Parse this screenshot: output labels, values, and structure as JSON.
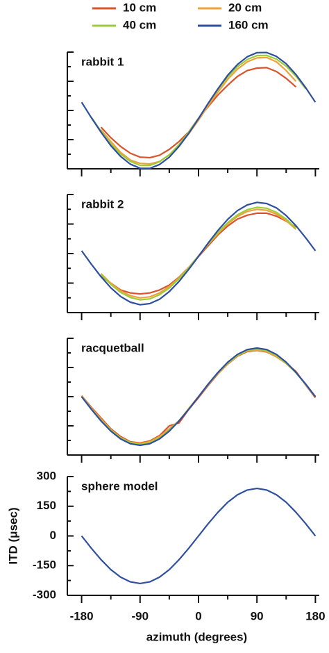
{
  "chart_data": [
    {
      "type": "line",
      "title": "rabbit 1",
      "x": [
        -180,
        -165,
        -150,
        -135,
        -120,
        -105,
        -90,
        -75,
        -60,
        -45,
        -30,
        -15,
        0,
        15,
        30,
        45,
        60,
        75,
        90,
        105,
        120,
        135,
        150,
        165,
        180
      ],
      "xlim": [
        -202,
        186
      ],
      "xticks": [
        -180,
        -90,
        0,
        90,
        180
      ],
      "xminor": [
        -135,
        -45,
        45,
        135
      ],
      "xtick_labels": false,
      "ylim": [
        -300,
        300
      ],
      "yticks": [
        -300,
        -150,
        0,
        150,
        300
      ],
      "yminor": [
        -225,
        -75,
        75,
        225
      ],
      "ytick_labels": false,
      "series": [
        {
          "name": "10 cm",
          "color": "#d9532b",
          "values": [
            null,
            null,
            -86,
            -140,
            -185,
            -220,
            -240,
            -243,
            -230,
            -200,
            -160,
            -110,
            -40,
            20,
            80,
            130,
            175,
            205,
            218,
            220,
            200,
            165,
            121,
            null,
            null
          ]
        },
        {
          "name": "20 cm",
          "color": "#f0a13a",
          "values": [
            null,
            null,
            -100,
            -160,
            -215,
            -255,
            -272,
            -275,
            -262,
            -228,
            -180,
            -120,
            -50,
            25,
            95,
            160,
            212,
            250,
            270,
            272,
            250,
            205,
            150,
            null,
            null
          ]
        },
        {
          "name": "40 cm",
          "color": "#9ccc3c",
          "values": [
            null,
            -35,
            -107,
            -172,
            -224,
            -262,
            -282,
            -283,
            -264,
            -228,
            -176,
            -111,
            -40,
            35,
            107,
            172,
            225,
            262,
            282,
            283,
            264,
            228,
            176,
            111,
            null
          ]
        },
        {
          "name": "160 cm",
          "color": "#2e4fa0",
          "values": [
            42,
            -37,
            -112,
            -181,
            -236,
            -276,
            -297,
            -298,
            -278,
            -240,
            -185,
            -117,
            -42,
            37,
            112,
            181,
            236,
            276,
            297,
            298,
            278,
            240,
            185,
            117,
            42
          ]
        }
      ]
    },
    {
      "type": "line",
      "title": "rabbit 2",
      "x": [
        -180,
        -165,
        -150,
        -135,
        -120,
        -105,
        -90,
        -75,
        -60,
        -45,
        -30,
        -15,
        0,
        15,
        30,
        45,
        60,
        75,
        90,
        105,
        120,
        135,
        150,
        165,
        180
      ],
      "xlim": [
        -202,
        186
      ],
      "xticks": [
        -180,
        -90,
        0,
        90,
        180
      ],
      "xminor": [
        -135,
        -45,
        45,
        135
      ],
      "xtick_labels": false,
      "ylim": [
        -300,
        300
      ],
      "yticks": [
        -300,
        -150,
        0,
        150,
        300
      ],
      "yminor": [
        -225,
        -75,
        75,
        225
      ],
      "ytick_labels": false,
      "series": [
        {
          "name": "10 cm",
          "color": "#d9532b",
          "values": [
            null,
            null,
            -116,
            -150,
            -185,
            -200,
            -205,
            -200,
            -185,
            -160,
            -120,
            -70,
            -15,
            40,
            95,
            140,
            175,
            195,
            205,
            205,
            190,
            165,
            134,
            null,
            null
          ]
        },
        {
          "name": "20 cm",
          "color": "#f0a13a",
          "values": [
            null,
            null,
            -102,
            -151,
            -189,
            -214,
            -225,
            -220,
            -200,
            -167,
            -123,
            -70,
            -12,
            47,
            102,
            151,
            189,
            214,
            225,
            220,
            200,
            167,
            123,
            null,
            null
          ]
        },
        {
          "name": "40 cm",
          "color": "#9ccc3c",
          "values": [
            null,
            null,
            -107,
            -157,
            -197,
            -223,
            -235,
            -230,
            -209,
            -175,
            -128,
            -73,
            -12,
            49,
            107,
            157,
            197,
            223,
            235,
            230,
            209,
            175,
            128,
            null,
            null
          ]
        },
        {
          "name": "160 cm",
          "color": "#2e4fa0",
          "values": [
            14,
            -54,
            -118,
            -174,
            -218,
            -247,
            -260,
            -254,
            -232,
            -193,
            -142,
            -80,
            -14,
            54,
            118,
            174,
            218,
            247,
            260,
            254,
            232,
            193,
            142,
            80,
            14
          ]
        }
      ]
    },
    {
      "type": "line",
      "title": "racquetball",
      "x": [
        -180,
        -165,
        -150,
        -135,
        -120,
        -105,
        -90,
        -75,
        -60,
        -45,
        -30,
        -15,
        0,
        15,
        30,
        45,
        60,
        75,
        90,
        105,
        120,
        135,
        150,
        165,
        180
      ],
      "xlim": [
        -202,
        186
      ],
      "xticks": [
        -180,
        -90,
        0,
        90,
        180
      ],
      "xminor": [
        -135,
        -45,
        45,
        135
      ],
      "xtick_labels": false,
      "ylim": [
        -300,
        300
      ],
      "yticks": [
        -300,
        -150,
        0,
        150,
        300
      ],
      "yminor": [
        -225,
        -75,
        75,
        225
      ],
      "ytick_labels": false,
      "series": [
        {
          "name": "10 cm",
          "color": "#d9532b",
          "values": [
            5,
            -55,
            -110,
            -165,
            -205,
            -232,
            -238,
            -228,
            -200,
            -150,
            -135,
            -65,
            -5,
            58,
            118,
            168,
            208,
            232,
            238,
            230,
            205,
            172,
            130,
            60,
            -5
          ]
        },
        {
          "name": "20 cm",
          "color": "#f0a13a",
          "values": [
            5,
            -60,
            -115,
            -170,
            -210,
            -235,
            -240,
            -232,
            -205,
            -165,
            -125,
            -60,
            0,
            62,
            120,
            170,
            210,
            235,
            240,
            232,
            205,
            170,
            125,
            62,
            0
          ]
        },
        {
          "name": "40 cm",
          "color": "#9ccc3c",
          "values": [
            0,
            -63,
            -123,
            -173,
            -212,
            -237,
            -245,
            -237,
            -212,
            -173,
            -123,
            -63,
            0,
            63,
            123,
            173,
            212,
            237,
            245,
            237,
            212,
            173,
            123,
            63,
            0
          ]
        },
        {
          "name": "160 cm",
          "color": "#2e4fa0",
          "values": [
            0,
            -65,
            -125,
            -177,
            -217,
            -242,
            -250,
            -242,
            -217,
            -177,
            -125,
            -65,
            0,
            65,
            125,
            177,
            217,
            242,
            250,
            242,
            217,
            177,
            125,
            65,
            0
          ]
        }
      ]
    },
    {
      "type": "line",
      "title": "sphere model",
      "xlabel": "azimuth (degrees)",
      "ylabel": "ITD (μsec)",
      "x": [
        -180,
        -165,
        -150,
        -135,
        -120,
        -105,
        -90,
        -75,
        -60,
        -45,
        -30,
        -15,
        0,
        15,
        30,
        45,
        60,
        75,
        90,
        105,
        120,
        135,
        150,
        165,
        180
      ],
      "xlim": [
        -202,
        186
      ],
      "xticks": [
        -180,
        -90,
        0,
        90,
        180
      ],
      "xminor": [
        -135,
        -45,
        45,
        135
      ],
      "xtick_labels": true,
      "ylim": [
        -300,
        300
      ],
      "yticks": [
        -300,
        -150,
        0,
        150,
        300
      ],
      "yminor": [
        -225,
        -75,
        75,
        225
      ],
      "ytick_labels": true,
      "series": [
        {
          "color": "#2e4fa0",
          "values": [
            0,
            -62,
            -120,
            -170,
            -208,
            -232,
            -240,
            -232,
            -208,
            -170,
            -120,
            -62,
            0,
            62,
            120,
            170,
            208,
            232,
            240,
            232,
            208,
            170,
            120,
            62,
            0
          ]
        }
      ]
    }
  ]
}
